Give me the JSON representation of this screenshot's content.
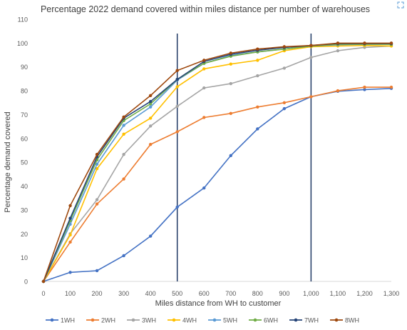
{
  "chart_data": {
    "type": "line",
    "title": "Percentage 2022 demand covered within miles distance per number of warehouses",
    "xlabel": "Miles distance from WH to customer",
    "ylabel": "Percentage demand covered",
    "x": [
      0,
      100,
      200,
      300,
      400,
      500,
      600,
      700,
      800,
      900,
      1000,
      1100,
      1200,
      1300
    ],
    "x_tick_labels": [
      "0",
      "100",
      "200",
      "300",
      "400",
      "500",
      "600",
      "700",
      "800",
      "900",
      "1,000",
      "1,100",
      "1,200",
      "1,300"
    ],
    "ylim": [
      0,
      110
    ],
    "y_ticks": [
      "0",
      "10",
      "20",
      "30",
      "40",
      "50",
      "60",
      "70",
      "80",
      "90",
      "100",
      "110"
    ],
    "grid": false,
    "legend": "bottom",
    "vertical_lines": [
      500,
      1000
    ],
    "series": [
      {
        "name": "1WH",
        "color": "#4472C4",
        "values": [
          0,
          3.8,
          4.5,
          10.8,
          19,
          31.2,
          39.2,
          52.8,
          64,
          72.5,
          77.5,
          79.8,
          80.5,
          81
        ]
      },
      {
        "name": "2WH",
        "color": "#ED7D31",
        "values": [
          0,
          16.5,
          32.5,
          43,
          57.5,
          62.8,
          68.8,
          70.5,
          73.2,
          75,
          77.5,
          80,
          81.5,
          81.5
        ]
      },
      {
        "name": "3WH",
        "color": "#A5A5A5",
        "values": [
          0,
          20,
          34.3,
          53.3,
          65.2,
          73.5,
          81.2,
          83,
          86.3,
          89.5,
          94,
          96.8,
          98.2,
          98.8
        ]
      },
      {
        "name": "4WH",
        "color": "#FFC000",
        "values": [
          0,
          19.5,
          47.3,
          61.8,
          68.5,
          81.7,
          89.2,
          91.2,
          92.8,
          96.8,
          98.5,
          98.8,
          99,
          98.8
        ]
      },
      {
        "name": "5WH",
        "color": "#5B9BD5",
        "values": [
          0,
          24,
          49.2,
          65.5,
          73.2,
          84.5,
          91.5,
          94.8,
          96.3,
          97.5,
          98.8,
          99.3,
          99.5,
          99.5
        ]
      },
      {
        "name": "6WH",
        "color": "#70AD47",
        "values": [
          0,
          25.5,
          51,
          67.5,
          74.5,
          84.8,
          91.5,
          94.5,
          96.3,
          97.5,
          98.8,
          99.5,
          99.5,
          99.5
        ]
      },
      {
        "name": "7WH",
        "color": "#264478",
        "values": [
          0,
          26.5,
          52.3,
          68.5,
          75.5,
          84.8,
          92.3,
          95.3,
          97,
          98.2,
          99,
          99.8,
          99.8,
          99.8
        ]
      },
      {
        "name": "8WH",
        "color": "#9E480E",
        "values": [
          0,
          31.8,
          53.3,
          69,
          78,
          88.5,
          92.8,
          95.8,
          97.5,
          98.5,
          99,
          100,
          100,
          100
        ]
      }
    ]
  },
  "icons": {
    "corner": "expand-icon"
  }
}
